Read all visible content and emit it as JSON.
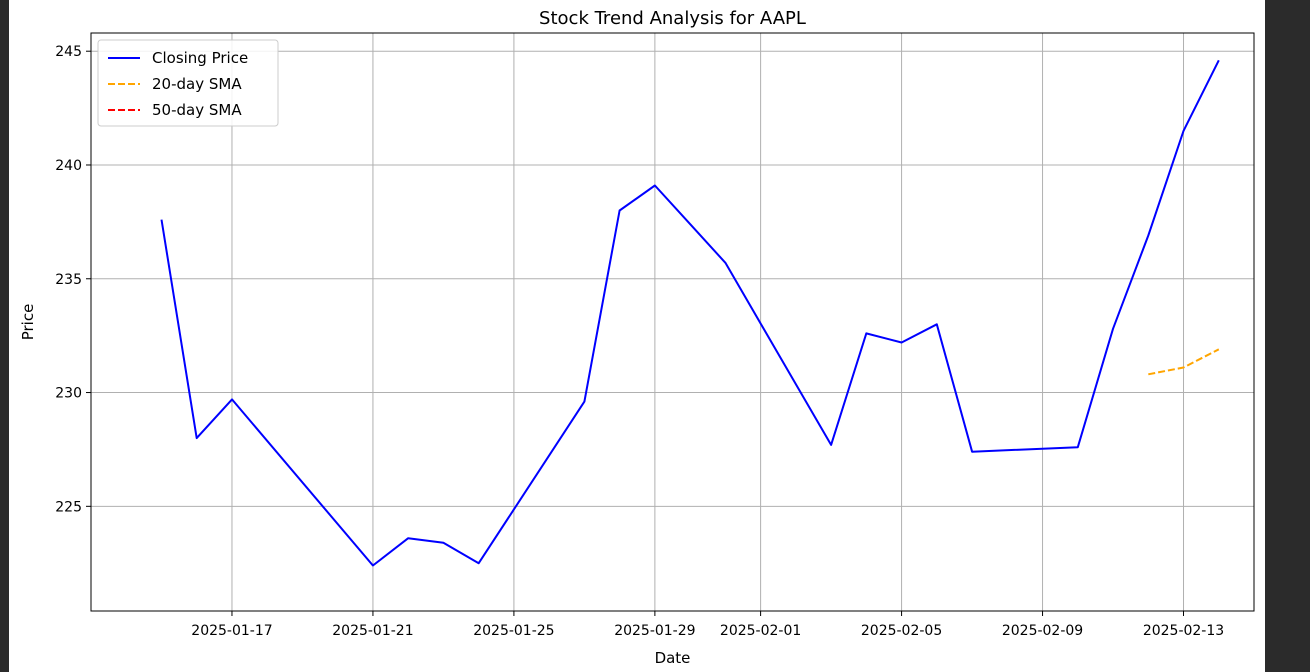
{
  "chart_data": {
    "type": "line",
    "title": "Stock Trend Analysis for AAPL",
    "xlabel": "Date",
    "ylabel": "Price",
    "xlim": [
      "2025-01-13",
      "2025-02-15"
    ],
    "ylim": [
      220.4,
      245.8
    ],
    "xticks": [
      "2025-01-17",
      "2025-01-21",
      "2025-01-25",
      "2025-01-29",
      "2025-02-01",
      "2025-02-05",
      "2025-02-09",
      "2025-02-13"
    ],
    "yticks": [
      225,
      230,
      235,
      240,
      245
    ],
    "grid": true,
    "legend_position": "top-left",
    "series": [
      {
        "name": "Closing Price",
        "color": "#0000ff",
        "style": "solid",
        "x": [
          "2025-01-15",
          "2025-01-16",
          "2025-01-17",
          "2025-01-21",
          "2025-01-22",
          "2025-01-23",
          "2025-01-24",
          "2025-01-27",
          "2025-01-28",
          "2025-01-29",
          "2025-01-30",
          "2025-01-31",
          "2025-02-03",
          "2025-02-04",
          "2025-02-05",
          "2025-02-06",
          "2025-02-07",
          "2025-02-10",
          "2025-02-11",
          "2025-02-12",
          "2025-02-13",
          "2025-02-14"
        ],
        "y": [
          237.6,
          228.0,
          229.7,
          222.4,
          223.6,
          223.4,
          222.5,
          229.6,
          238.0,
          239.1,
          237.4,
          235.7,
          227.7,
          232.6,
          232.2,
          233.0,
          227.4,
          227.6,
          232.8,
          236.9,
          241.5,
          244.6
        ]
      },
      {
        "name": "20-day SMA",
        "color": "#ffa500",
        "style": "dashed",
        "x": [
          "2025-02-12",
          "2025-02-13",
          "2025-02-14"
        ],
        "y": [
          230.8,
          231.1,
          231.9
        ]
      },
      {
        "name": "50-day SMA",
        "color": "#ff0000",
        "style": "dashed",
        "x": [],
        "y": []
      }
    ]
  }
}
